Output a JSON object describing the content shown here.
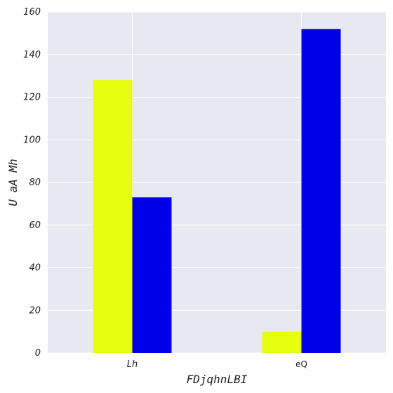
{
  "chart_data": {
    "type": "bar",
    "categories": [
      "Lh",
      "eQ"
    ],
    "series": [
      {
        "values": [
          128,
          10
        ],
        "color": "#e5ff0f"
      },
      {
        "values": [
          73,
          152
        ],
        "color": "#0000e6"
      }
    ],
    "xlabel": "FDjqhnLBI",
    "ylabel": "U aA Mh",
    "ylim": [
      0,
      160
    ],
    "yticks": [
      0,
      20,
      40,
      60,
      80,
      100,
      120,
      140,
      160
    ],
    "grid": true,
    "background_color": "#e8e8f0",
    "grid_color": "#ffffff"
  }
}
